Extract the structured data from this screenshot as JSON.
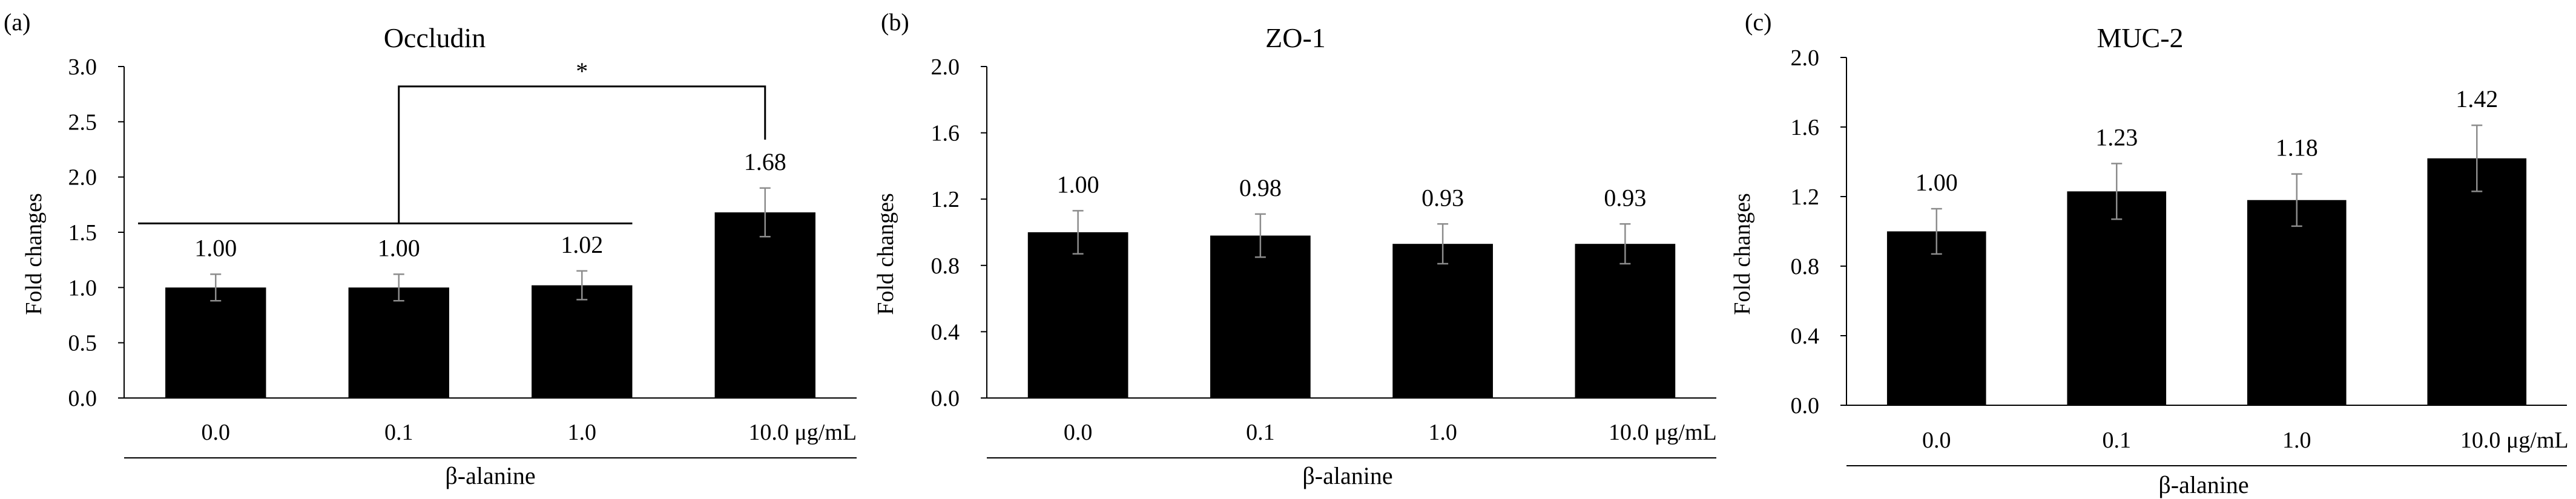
{
  "figure": {
    "xlabel_group": "β-alanine",
    "unit_suffix": "μg/mL",
    "ylabel": "Fold changes"
  },
  "chart_data": [
    {
      "panel_label": "(a)",
      "type": "bar",
      "title": "Occludin",
      "ylabel": "Fold changes",
      "xlabel": "β-alanine",
      "categories": [
        "0.0",
        "0.1",
        "1.0",
        "10.0"
      ],
      "values": [
        1.0,
        1.0,
        1.02,
        1.68
      ],
      "value_labels": [
        "1.00",
        "1.00",
        "1.02",
        "1.68"
      ],
      "errors": [
        0.12,
        0.12,
        0.13,
        0.22
      ],
      "ylim": [
        0.0,
        3.0
      ],
      "yticks": [
        "0.0",
        "0.5",
        "1.0",
        "1.5",
        "2.0",
        "2.5",
        "3.0"
      ],
      "significance": {
        "marker": "*",
        "group_start": "0.0",
        "group_end": "1.0",
        "compare": "10.0",
        "group_line_value": 1.58,
        "top_value": 2.82
      },
      "color": "#000000"
    },
    {
      "panel_label": "(b)",
      "type": "bar",
      "title": "ZO-1",
      "ylabel": "Fold changes",
      "xlabel": "β-alanine",
      "categories": [
        "0.0",
        "0.1",
        "1.0",
        "10.0"
      ],
      "values": [
        1.0,
        0.98,
        0.93,
        0.93
      ],
      "value_labels": [
        "1.00",
        "0.98",
        "0.93",
        "0.93"
      ],
      "errors": [
        0.13,
        0.13,
        0.12,
        0.12
      ],
      "ylim": [
        0.0,
        2.0
      ],
      "yticks": [
        "0.0",
        "0.4",
        "0.8",
        "1.2",
        "1.6",
        "2.0"
      ],
      "color": "#000000"
    },
    {
      "panel_label": "(c)",
      "type": "bar",
      "title": "MUC-2",
      "ylabel": "Fold changes",
      "xlabel": "β-alanine",
      "categories": [
        "0.0",
        "0.1",
        "1.0",
        "10.0"
      ],
      "values": [
        1.0,
        1.23,
        1.18,
        1.42
      ],
      "value_labels": [
        "1.00",
        "1.23",
        "1.18",
        "1.42"
      ],
      "errors": [
        0.13,
        0.16,
        0.15,
        0.19
      ],
      "ylim": [
        0.0,
        2.0
      ],
      "yticks": [
        "0.0",
        "0.4",
        "0.8",
        "1.2",
        "1.6",
        "2.0"
      ],
      "color": "#000000"
    }
  ]
}
